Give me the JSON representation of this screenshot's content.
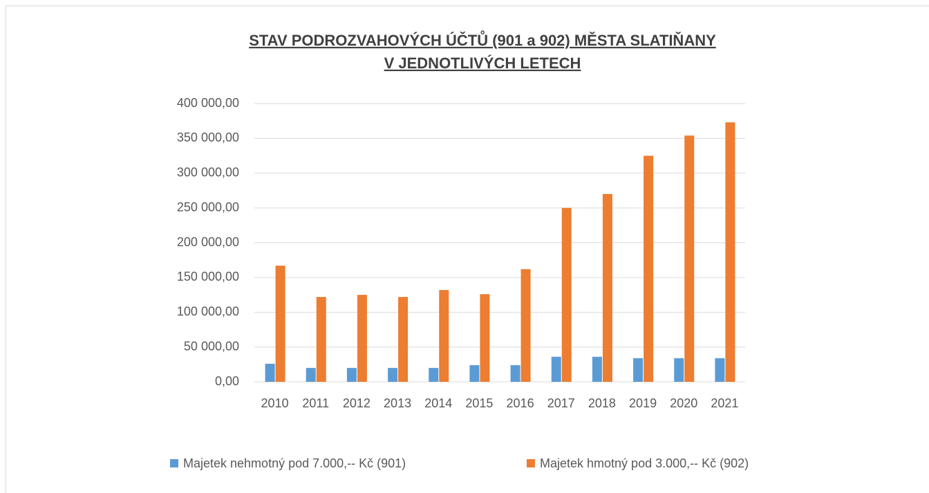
{
  "chart_data": {
    "type": "bar",
    "title": [
      "STAV PODROZVAHOVÝCH ÚČTŮ (901 a 902) MĚSTA SLATIŇANY",
      "V JEDNOTLIVÝCH LETECH"
    ],
    "categories": [
      "2010",
      "2011",
      "2012",
      "2013",
      "2014",
      "2015",
      "2016",
      "2017",
      "2018",
      "2019",
      "2020",
      "2021"
    ],
    "series": [
      {
        "name": "Majetek nehmotný pod 7.000,-- Kč (901)",
        "color": "#5b9bd5",
        "values": [
          26000,
          20000,
          20000,
          20000,
          20000,
          24000,
          24000,
          36000,
          36000,
          34000,
          34000,
          34000
        ]
      },
      {
        "name": "Majetek hmotný pod 3.000,-- Kč (902)",
        "color": "#ed7d31",
        "values": [
          167000,
          122000,
          125000,
          122000,
          132000,
          126000,
          162000,
          250000,
          270000,
          325000,
          354000,
          373000
        ]
      }
    ],
    "ylim": [
      0,
      400000
    ],
    "yticks": [
      {
        "value": 0,
        "label": "0,00"
      },
      {
        "value": 50000,
        "label": "50 000,00"
      },
      {
        "value": 100000,
        "label": "100 000,00"
      },
      {
        "value": 150000,
        "label": "150 000,00"
      },
      {
        "value": 200000,
        "label": "200 000,00"
      },
      {
        "value": 250000,
        "label": "250 000,00"
      },
      {
        "value": 300000,
        "label": "300 000,00"
      },
      {
        "value": 350000,
        "label": "350 000,00"
      },
      {
        "value": 400000,
        "label": "400 000,00"
      }
    ],
    "grid": true,
    "legend": "bottom"
  }
}
